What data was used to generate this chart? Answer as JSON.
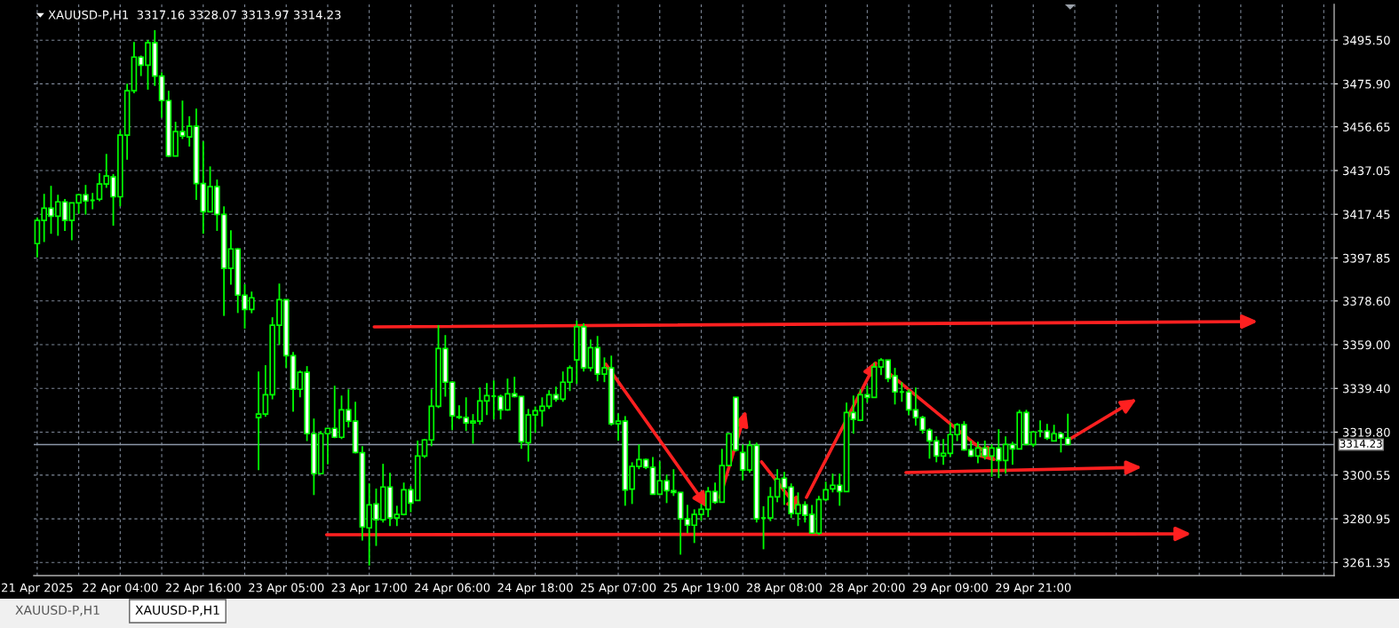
{
  "chart_data": {
    "type": "candlestick",
    "title": "XAUUSD-P,H1  3317.16 3328.07 3313.97 3314.23",
    "color": "#00ff00",
    "categories": [
      "21 Apr 2025",
      null,
      null,
      null,
      null,
      null,
      null,
      null,
      null,
      null,
      null,
      null,
      "22 Apr 04:00",
      null,
      null,
      null,
      null,
      null,
      null,
      null,
      null,
      null,
      null,
      null,
      "22 Apr 16:00",
      null,
      null,
      null,
      null,
      null,
      null,
      null,
      null,
      null,
      null,
      null,
      "23 Apr 05:00",
      null,
      null,
      null,
      null,
      null,
      null,
      null,
      null,
      null,
      null,
      null,
      "23 Apr 17:00",
      null,
      null,
      null,
      null,
      null,
      null,
      null,
      null,
      null,
      null,
      null,
      "24 Apr 06:00",
      null,
      null,
      null,
      null,
      null,
      null,
      null,
      null,
      null,
      null,
      null,
      "24 Apr 18:00",
      null,
      null,
      null,
      null,
      null,
      null,
      null,
      null,
      null,
      null,
      null,
      "25 Apr 07:00",
      null,
      null,
      null,
      null,
      null,
      null,
      null,
      null,
      null,
      null,
      null,
      "25 Apr 19:00",
      null,
      null,
      null,
      null,
      null,
      null,
      null,
      null,
      null,
      null,
      null,
      "28 Apr 08:00",
      null,
      null,
      null,
      null,
      null,
      null,
      null,
      null,
      null,
      null,
      null,
      "28 Apr 20:00",
      null,
      null,
      null,
      null,
      null,
      null,
      null,
      null,
      null,
      null,
      null,
      "29 Apr 09:00",
      null,
      null,
      null,
      null,
      null,
      null,
      null,
      null,
      null,
      null,
      null,
      "29 Apr 21:00",
      null,
      null,
      null,
      null,
      null,
      null,
      null,
      null,
      null,
      null,
      null,
      null,
      null,
      null,
      null,
      null,
      null,
      null,
      null,
      null,
      null,
      null,
      null,
      null,
      null,
      null,
      null,
      null,
      null,
      null,
      null,
      null,
      null,
      null,
      null,
      null,
      null,
      null,
      null,
      null,
      null,
      null,
      null
    ],
    "ohlc": [
      [
        3404.3,
        3416.0,
        3398.1,
        3414.7
      ],
      [
        3414.7,
        3426.6,
        3405.0,
        3420.2
      ],
      [
        3420.2,
        3430.2,
        3408.7,
        3416.6
      ],
      [
        3416.6,
        3426.2,
        3407.8,
        3423.0
      ],
      [
        3423.0,
        3424.3,
        3410.0,
        3414.7
      ],
      [
        3414.7,
        3422.6,
        3405.8,
        3422.6
      ],
      [
        3422.6,
        3426.6,
        3417.7,
        3426.2
      ],
      [
        3426.2,
        3430.6,
        3417.3,
        3423.4
      ],
      [
        3423.7,
        3427.0,
        3419.7,
        3423.7
      ],
      [
        3424.2,
        3435.9,
        3423.3,
        3431.0
      ],
      [
        3431.0,
        3444.5,
        3429.3,
        3434.6
      ],
      [
        3434.2,
        3435.5,
        3412.3,
        3425.3
      ],
      [
        3425.3,
        3455.1,
        3421.0,
        3452.9
      ],
      [
        3452.9,
        3476.0,
        3441.9,
        3472.8
      ],
      [
        3472.8,
        3494.7,
        3471.7,
        3487.9
      ],
      [
        3487.9,
        3488.6,
        3479.4,
        3484.3
      ],
      [
        3484.3,
        3495.6,
        3473.3,
        3494.3
      ],
      [
        3494.3,
        3500.0,
        3475.0,
        3479.4
      ],
      [
        3479.4,
        3481.0,
        3460.7,
        3468.4
      ],
      [
        3468.4,
        3472.8,
        3443.2,
        3443.6
      ],
      [
        3443.6,
        3458.9,
        3443.6,
        3454.5
      ],
      [
        3454.5,
        3468.4,
        3451.2,
        3452.5
      ],
      [
        3452.1,
        3461.4,
        3447.8,
        3456.9
      ],
      [
        3456.9,
        3464.8,
        3423.9,
        3431.2
      ],
      [
        3431.2,
        3450.1,
        3408.7,
        3418.6
      ],
      [
        3418.6,
        3438.9,
        3418.6,
        3429.8
      ],
      [
        3429.8,
        3433.0,
        3410.0,
        3417.4
      ],
      [
        3417.4,
        3421.0,
        3371.9,
        3393.2
      ],
      [
        3393.2,
        3410.3,
        3385.9,
        3401.9
      ],
      [
        3401.9,
        3402.3,
        3373.2,
        3381.2
      ],
      [
        3381.2,
        3386.1,
        3366.2,
        3374.8
      ],
      [
        3374.8,
        3382.8,
        3373.1,
        3380.0
      ],
      [
        3326.3,
        3347.0,
        3302.8,
        3327.9
      ],
      [
        3327.9,
        3349.8,
        3326.7,
        3336.6
      ],
      [
        3336.6,
        3371.3,
        3334.5,
        3367.7
      ],
      [
        3367.7,
        3386.4,
        3358.9,
        3379.2
      ],
      [
        3379.2,
        3379.2,
        3348.6,
        3354.1
      ],
      [
        3354.1,
        3355.7,
        3329.0,
        3339.0
      ],
      [
        3339.0,
        3347.4,
        3335.4,
        3346.6
      ],
      [
        3346.6,
        3349.4,
        3315.8,
        3319.1
      ],
      [
        3319.1,
        3325.9,
        3291.6,
        3301.2
      ],
      [
        3301.2,
        3320.3,
        3301.2,
        3319.1
      ],
      [
        3319.1,
        3321.5,
        3305.4,
        3321.5
      ],
      [
        3321.5,
        3340.6,
        3317.1,
        3317.5
      ],
      [
        3317.5,
        3336.2,
        3316.7,
        3329.8
      ],
      [
        3329.8,
        3339.0,
        3321.9,
        3324.7
      ],
      [
        3324.7,
        3333.4,
        3310.3,
        3310.7
      ],
      [
        3310.6,
        3313.5,
        3271.2,
        3277.3
      ],
      [
        3276.9,
        3296.8,
        3260.0,
        3287.2
      ],
      [
        3287.6,
        3294.5,
        3268.8,
        3280.5
      ],
      [
        3280.5,
        3305.6,
        3279.3,
        3295.2
      ],
      [
        3295.2,
        3301.6,
        3277.7,
        3281.3
      ],
      [
        3281.3,
        3286.8,
        3277.7,
        3282.9
      ],
      [
        3282.9,
        3297.2,
        3282.5,
        3294.0
      ],
      [
        3294.0,
        3295.6,
        3283.9,
        3288.0
      ],
      [
        3289.2,
        3316.0,
        3289.2,
        3309.1
      ],
      [
        3309.1,
        3316.7,
        3308.3,
        3316.3
      ],
      [
        3316.3,
        3339.0,
        3313.5,
        3331.4
      ],
      [
        3331.4,
        3367.8,
        3330.6,
        3357.3
      ],
      [
        3357.3,
        3363.3,
        3335.7,
        3342.2
      ],
      [
        3342.2,
        3342.6,
        3320.7,
        3327.1
      ],
      [
        3326.7,
        3331.8,
        3325.7,
        3326.4
      ],
      [
        3326.3,
        3335.4,
        3320.3,
        3323.9
      ],
      [
        3323.9,
        3327.9,
        3314.6,
        3324.7
      ],
      [
        3324.7,
        3339.8,
        3323.1,
        3333.8
      ],
      [
        3333.8,
        3341.8,
        3327.5,
        3336.2
      ],
      [
        3335.9,
        3343.0,
        3325.5,
        3335.9
      ],
      [
        3335.8,
        3336.6,
        3325.5,
        3329.8
      ],
      [
        3329.8,
        3343.8,
        3329.4,
        3337.0
      ],
      [
        3337.0,
        3344.6,
        3335.4,
        3335.8
      ],
      [
        3335.8,
        3335.8,
        3312.3,
        3315.5
      ],
      [
        3315.1,
        3330.2,
        3306.6,
        3327.5
      ],
      [
        3327.5,
        3331.3,
        3319.5,
        3329.4
      ],
      [
        3329.4,
        3335.4,
        3322.3,
        3331.4
      ],
      [
        3331.4,
        3338.6,
        3330.2,
        3336.6
      ],
      [
        3336.6,
        3340.2,
        3333.4,
        3334.6
      ],
      [
        3334.6,
        3347.0,
        3333.4,
        3342.2
      ],
      [
        3342.2,
        3349.7,
        3338.2,
        3348.6
      ],
      [
        3352.2,
        3369.8,
        3341.4,
        3367.0
      ],
      [
        3367.0,
        3368.6,
        3347.0,
        3348.6
      ],
      [
        3348.6,
        3361.3,
        3347.0,
        3357.7
      ],
      [
        3357.7,
        3362.9,
        3342.6,
        3345.8
      ],
      [
        3345.8,
        3353.3,
        3342.2,
        3348.6
      ],
      [
        3348.6,
        3354.1,
        3322.7,
        3323.5
      ],
      [
        3323.5,
        3328.2,
        3315.9,
        3324.7
      ],
      [
        3324.7,
        3327.0,
        3286.8,
        3293.9
      ],
      [
        3294.3,
        3306.3,
        3287.6,
        3304.4
      ],
      [
        3304.4,
        3314.3,
        3303.2,
        3307.5
      ],
      [
        3307.5,
        3307.9,
        3303.2,
        3304.0
      ],
      [
        3304.0,
        3308.7,
        3292.0,
        3292.0
      ],
      [
        3292.0,
        3306.7,
        3291.6,
        3298.0
      ],
      [
        3298.0,
        3300.8,
        3288.0,
        3293.6
      ],
      [
        3293.6,
        3303.2,
        3291.2,
        3292.8
      ],
      [
        3292.8,
        3292.8,
        3264.9,
        3280.9
      ],
      [
        3280.9,
        3287.2,
        3274.5,
        3278.1
      ],
      [
        3278.1,
        3285.2,
        3270.1,
        3282.9
      ],
      [
        3282.9,
        3287.6,
        3280.1,
        3285.2
      ],
      [
        3285.2,
        3295.2,
        3281.7,
        3293.2
      ],
      [
        3293.2,
        3297.2,
        3287.6,
        3288.4
      ],
      [
        3288.4,
        3312.3,
        3288.4,
        3304.8
      ],
      [
        3304.8,
        3319.1,
        3304.5,
        3319.1
      ],
      [
        3335.4,
        3335.4,
        3311.1,
        3311.8
      ],
      [
        3310.7,
        3314.3,
        3298.2,
        3302.8
      ],
      [
        3302.8,
        3315.9,
        3301.6,
        3313.9
      ],
      [
        3313.9,
        3315.1,
        3279.3,
        3280.9
      ],
      [
        3281.3,
        3286.6,
        3267.3,
        3281.3
      ],
      [
        3281.3,
        3295.2,
        3279.9,
        3290.8
      ],
      [
        3290.8,
        3303.2,
        3288.4,
        3298.8
      ],
      [
        3299.2,
        3302.0,
        3287.2,
        3294.8
      ],
      [
        3295.2,
        3296.8,
        3281.3,
        3283.3
      ],
      [
        3283.3,
        3292.8,
        3277.7,
        3287.2
      ],
      [
        3287.2,
        3288.8,
        3279.3,
        3282.5
      ],
      [
        3282.9,
        3287.2,
        3274.5,
        3274.5
      ],
      [
        3274.5,
        3291.2,
        3273.7,
        3289.6
      ],
      [
        3289.6,
        3297.6,
        3288.8,
        3294.0
      ],
      [
        3294.4,
        3301.2,
        3292.8,
        3296.0
      ],
      [
        3296.0,
        3301.2,
        3286.8,
        3293.2
      ],
      [
        3293.2,
        3333.0,
        3293.2,
        3328.6
      ],
      [
        3328.6,
        3336.2,
        3319.1,
        3325.5
      ],
      [
        3325.1,
        3339.0,
        3324.7,
        3336.6
      ],
      [
        3336.6,
        3340.6,
        3333.0,
        3335.4
      ],
      [
        3335.4,
        3350.9,
        3335.4,
        3349.0
      ],
      [
        3349.0,
        3352.9,
        3345.4,
        3352.1
      ],
      [
        3352.1,
        3352.1,
        3342.2,
        3343.8
      ],
      [
        3345.0,
        3348.6,
        3332.2,
        3337.8
      ],
      [
        3337.8,
        3342.2,
        3333.4,
        3337.8
      ],
      [
        3337.8,
        3339.0,
        3327.5,
        3329.8
      ],
      [
        3329.8,
        3339.8,
        3322.7,
        3326.3
      ],
      [
        3326.3,
        3327.1,
        3319.1,
        3320.7
      ],
      [
        3320.7,
        3321.5,
        3307.9,
        3315.9
      ],
      [
        3315.9,
        3317.9,
        3306.3,
        3309.1
      ],
      [
        3309.1,
        3316.7,
        3305.2,
        3310.3
      ],
      [
        3310.3,
        3323.9,
        3308.7,
        3318.7
      ],
      [
        3318.7,
        3323.9,
        3315.8,
        3323.1
      ],
      [
        3323.1,
        3324.7,
        3311.5,
        3311.9
      ],
      [
        3311.9,
        3315.9,
        3308.7,
        3309.1
      ],
      [
        3309.1,
        3315.5,
        3305.9,
        3312.7
      ],
      [
        3312.7,
        3316.0,
        3307.5,
        3309.1
      ],
      [
        3309.1,
        3314.4,
        3299.8,
        3312.7
      ],
      [
        3312.7,
        3321.1,
        3299.2,
        3307.1
      ],
      [
        3307.1,
        3317.9,
        3301.2,
        3314.3
      ],
      [
        3314.3,
        3315.5,
        3305.2,
        3312.3
      ],
      [
        3312.3,
        3329.8,
        3312.3,
        3328.6
      ],
      [
        3328.6,
        3329.8,
        3314.3,
        3314.3
      ],
      [
        3314.3,
        3319.9,
        3313.1,
        3319.9
      ],
      [
        3320.3,
        3325.1,
        3317.5,
        3320.3
      ],
      [
        3320.3,
        3323.5,
        3316.3,
        3317.1
      ],
      [
        3315.9,
        3323.1,
        3315.9,
        3319.1
      ],
      [
        3319.1,
        3319.9,
        3310.7,
        3317.1
      ],
      [
        3317.16,
        3328.07,
        3313.97,
        3314.23
      ],
      null,
      null,
      null,
      null,
      null,
      null,
      null,
      null,
      null,
      null,
      null,
      null,
      null,
      null,
      null,
      null,
      null,
      null,
      null,
      null,
      null,
      null,
      null,
      null,
      null,
      null,
      null,
      null,
      null,
      null,
      null,
      null,
      null,
      null,
      null,
      null,
      null,
      null
    ],
    "ylim": [
      3255.5,
      3511.5
    ],
    "yticks": [
      {
        "value": 3495.5,
        "label": "3495.50"
      },
      {
        "value": 3475.9,
        "label": "3475.90"
      },
      {
        "value": 3456.65,
        "label": "3456.65"
      },
      {
        "value": 3437.05,
        "label": "3437.05"
      },
      {
        "value": 3417.45,
        "label": "3417.45"
      },
      {
        "value": 3397.85,
        "label": "3397.85"
      },
      {
        "value": 3378.6,
        "label": "3378.60"
      },
      {
        "value": 3359,
        "label": "3359.00"
      },
      {
        "value": 3339.4,
        "label": "3339.40"
      },
      {
        "value": 3319.8,
        "label": "3319.80"
      },
      {
        "value": 3300.55,
        "label": "3300.55"
      },
      {
        "value": 3280.95,
        "label": "3280.95"
      },
      {
        "value": 3261.35,
        "label": "3261.35"
      }
    ],
    "ref_lines": [
      {
        "axis": "y",
        "value": 3314.23,
        "label": "3314.23",
        "color": "#8c97a8"
      }
    ],
    "grid": true,
    "annotations": [
      "XAUUSD-P,H1",
      "XAUUSD-P,H1"
    ]
  }
}
